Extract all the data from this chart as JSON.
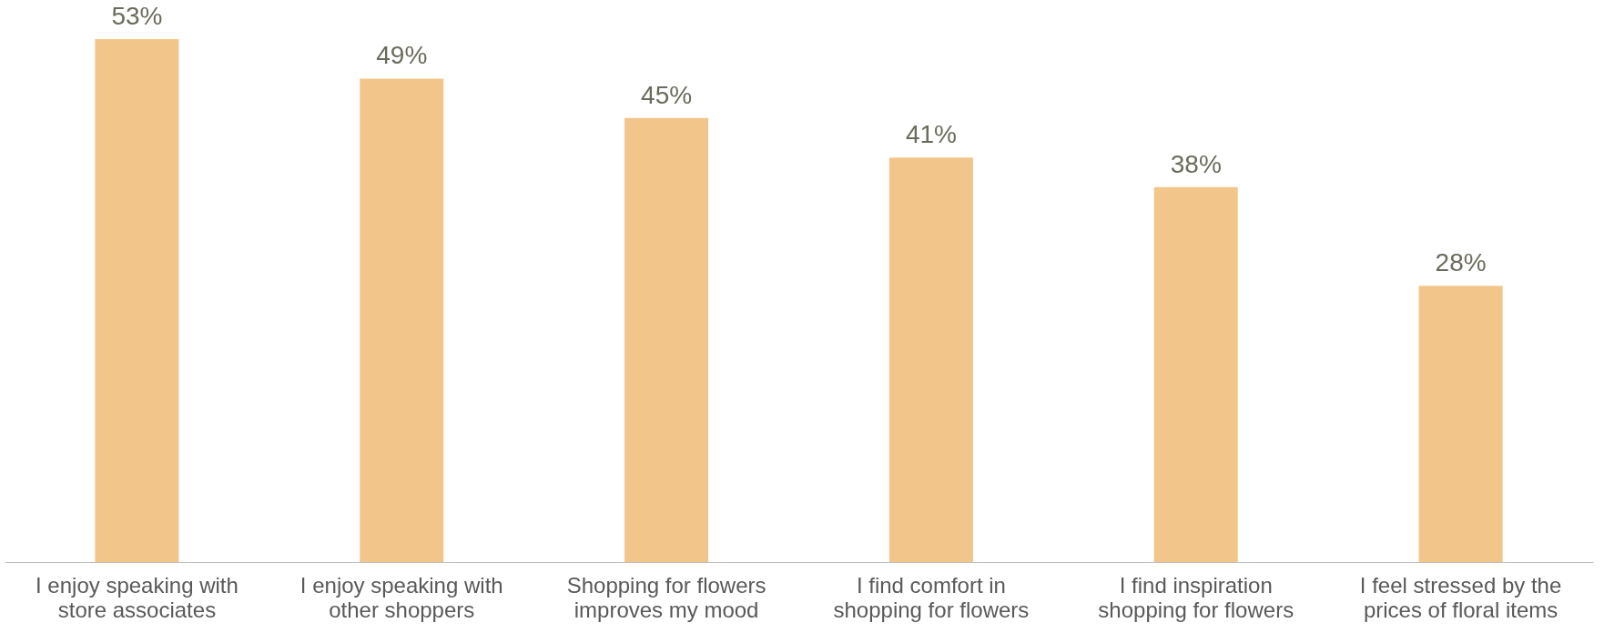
{
  "chart_data": {
    "type": "bar",
    "categories": [
      "I enjoy speaking with store associates",
      "I enjoy speaking with other shoppers",
      "Shopping for flowers improves my mood",
      "I find comfort in shopping for flowers",
      "I find inspiration shopping for flowers",
      "I feel stressed by the prices of floral items"
    ],
    "values": [
      53,
      49,
      45,
      41,
      38,
      28
    ],
    "value_labels": [
      "53%",
      "49%",
      "45%",
      "41%",
      "38%",
      "28%"
    ],
    "color": "#f2c68a",
    "grid": false
  }
}
